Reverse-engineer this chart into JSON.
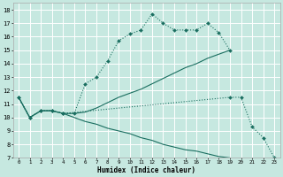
{
  "xlabel": "Humidex (Indice chaleur)",
  "background_color": "#c6e8e0",
  "grid_color": "#ffffff",
  "line_color": "#1a6e60",
  "xlim": [
    -0.5,
    23.5
  ],
  "ylim": [
    7,
    18.5
  ],
  "xticks": [
    0,
    1,
    2,
    3,
    4,
    5,
    6,
    7,
    8,
    9,
    10,
    11,
    12,
    13,
    14,
    15,
    16,
    17,
    18,
    19,
    20,
    21,
    22,
    23
  ],
  "yticks": [
    7,
    8,
    9,
    10,
    11,
    12,
    13,
    14,
    15,
    16,
    17,
    18
  ],
  "line1_x": [
    0,
    1,
    2,
    3,
    4,
    5,
    6,
    7,
    8,
    9,
    10,
    11,
    12,
    13,
    14,
    15,
    16,
    17,
    18,
    19
  ],
  "line1_y": [
    11.5,
    10.0,
    10.5,
    10.5,
    10.3,
    10.3,
    12.5,
    13.0,
    14.2,
    15.7,
    16.2,
    16.5,
    17.7,
    17.0,
    16.5,
    16.5,
    16.5,
    17.0,
    16.3,
    15.0
  ],
  "line2_x": [
    0,
    1,
    2,
    3,
    4,
    5,
    6,
    7,
    8,
    9,
    10,
    11,
    12,
    13,
    14,
    15,
    16,
    17,
    19
  ],
  "line2_y": [
    11.5,
    10.0,
    10.5,
    10.5,
    10.3,
    10.3,
    10.4,
    10.7,
    11.1,
    11.5,
    11.8,
    12.1,
    12.5,
    12.9,
    13.3,
    13.7,
    14.0,
    14.4,
    15.0
  ],
  "line3_x": [
    0,
    1,
    2,
    3,
    4,
    19,
    20,
    21,
    22,
    23
  ],
  "line3_y": [
    11.5,
    10.0,
    10.5,
    10.5,
    10.3,
    11.5,
    11.5,
    9.3,
    8.5,
    7.0
  ],
  "line4_x": [
    0,
    1,
    2,
    3,
    4,
    5,
    6,
    7,
    8,
    9,
    10,
    11,
    12,
    13,
    14,
    15,
    16,
    17,
    18,
    19,
    20,
    21,
    22,
    23
  ],
  "line4_y": [
    11.5,
    10.0,
    10.5,
    10.5,
    10.3,
    10.0,
    9.7,
    9.5,
    9.2,
    9.0,
    8.8,
    8.5,
    8.3,
    8.0,
    7.8,
    7.6,
    7.5,
    7.3,
    7.1,
    7.0,
    null,
    null,
    null,
    null
  ]
}
